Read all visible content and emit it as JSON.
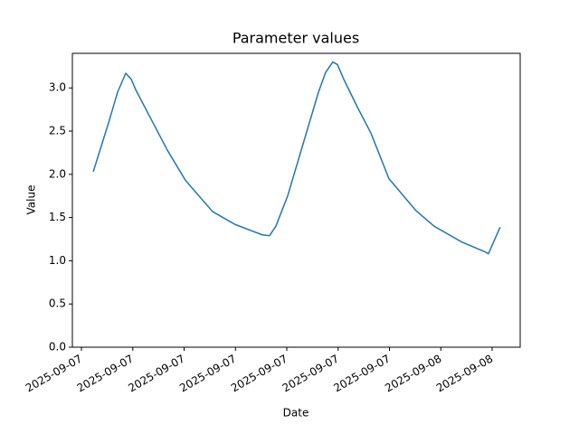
{
  "chart_data": {
    "type": "line",
    "title": "Parameter values",
    "x_label": "Date",
    "y_label": "Value",
    "x": [
      3.69,
      4.59,
      5.11,
      5.59,
      5.91,
      6.17,
      6.96,
      8.02,
      9.08,
      10.66,
      11.98,
      13.57,
      13.99,
      14.36,
      15.05,
      15.95,
      16.85,
      17.27,
      17.69,
      17.96,
      18.33,
      19.12,
      19.91,
      20.97,
      22.55,
      23.61,
      25.2,
      26.62,
      26.78,
      27.47
    ],
    "series": [
      {
        "name": "Value",
        "color": "#1f77b4",
        "values": [
          2.03,
          2.6,
          2.95,
          3.17,
          3.1,
          2.98,
          2.68,
          2.28,
          1.93,
          1.57,
          1.42,
          1.3,
          1.29,
          1.4,
          1.75,
          2.35,
          2.95,
          3.18,
          3.3,
          3.27,
          3.1,
          2.78,
          2.48,
          1.95,
          1.58,
          1.4,
          1.22,
          1.1,
          1.08,
          1.39
        ]
      }
    ],
    "xlim": [
      2.47,
      28.64
    ],
    "ylim": [
      0,
      3.4
    ],
    "xticks": [
      {
        "value": 3,
        "label": "2025-09-07"
      },
      {
        "value": 6,
        "label": "2025-09-07"
      },
      {
        "value": 9,
        "label": "2025-09-07"
      },
      {
        "value": 12,
        "label": "2025-09-07"
      },
      {
        "value": 15,
        "label": "2025-09-07"
      },
      {
        "value": 18,
        "label": "2025-09-07"
      },
      {
        "value": 21,
        "label": "2025-09-07"
      },
      {
        "value": 24,
        "label": "2025-09-08"
      },
      {
        "value": 27,
        "label": "2025-09-08"
      }
    ],
    "yticks": [
      {
        "value": 0,
        "label": "0.0"
      },
      {
        "value": 0.5,
        "label": "0.5"
      },
      {
        "value": 1,
        "label": "1.0"
      },
      {
        "value": 1.5,
        "label": "1.5"
      },
      {
        "value": 2,
        "label": "2.0"
      },
      {
        "value": 2.5,
        "label": "2.5"
      },
      {
        "value": 3,
        "label": "3.0"
      }
    ],
    "grid": false
  }
}
